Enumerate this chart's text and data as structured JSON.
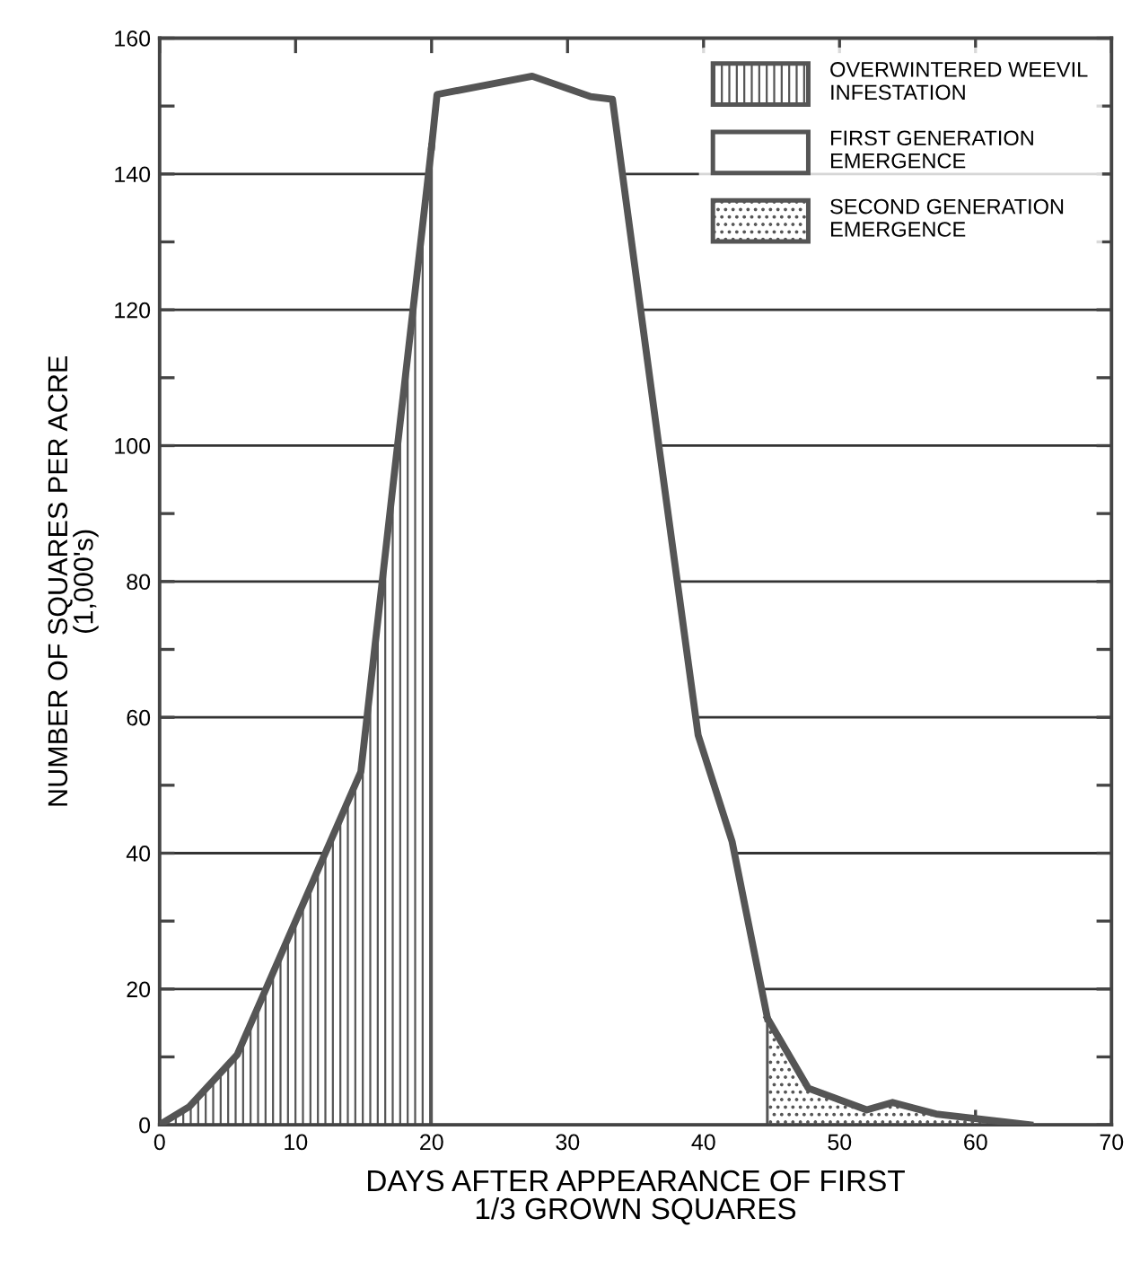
{
  "chart_data": {
    "type": "area",
    "xlabel": "DAYS AFTER APPEARANCE OF FIRST\n1/3 GROWN SQUARES",
    "ylabel": "NUMBER OF SQUARES PER ACRE\n(1,000's)",
    "series": [
      {
        "name": "OVERWINTERED WEEVIL\nINFESTATION",
        "color": "#555555",
        "x": [
          0,
          2.2,
          5.7,
          14.8,
          17.2,
          20
        ],
        "values": [
          0,
          2.7,
          10.3,
          52,
          94.8,
          144
        ]
      },
      {
        "name": "FIRST GENERATION\nEMERGENCE",
        "color": "#555555",
        "x": [
          20,
          20.4,
          27.4,
          31.7,
          33.3,
          36.7,
          39.6,
          42.1,
          44.7
        ],
        "values": [
          144,
          151.7,
          154.4,
          151.4,
          151,
          100.2,
          57.4,
          41.7,
          15.7
        ]
      },
      {
        "name": "SECOND GENERATION\nEMERGENCE",
        "color": "#555555",
        "x": [
          44.7,
          47.7,
          52,
          53.9,
          57.1,
          62.7,
          64
        ],
        "values": [
          15.7,
          5.4,
          2.2,
          3.3,
          1.6,
          0.3,
          0
        ]
      }
    ],
    "xlim": [
      0,
      70
    ],
    "xticks": [
      0,
      10,
      20,
      30,
      40,
      50,
      60,
      70
    ],
    "ylim": [
      0,
      160
    ],
    "yticks": [
      0,
      20,
      40,
      60,
      80,
      100,
      120,
      140,
      160
    ],
    "grid": "y",
    "legend": "top right"
  }
}
